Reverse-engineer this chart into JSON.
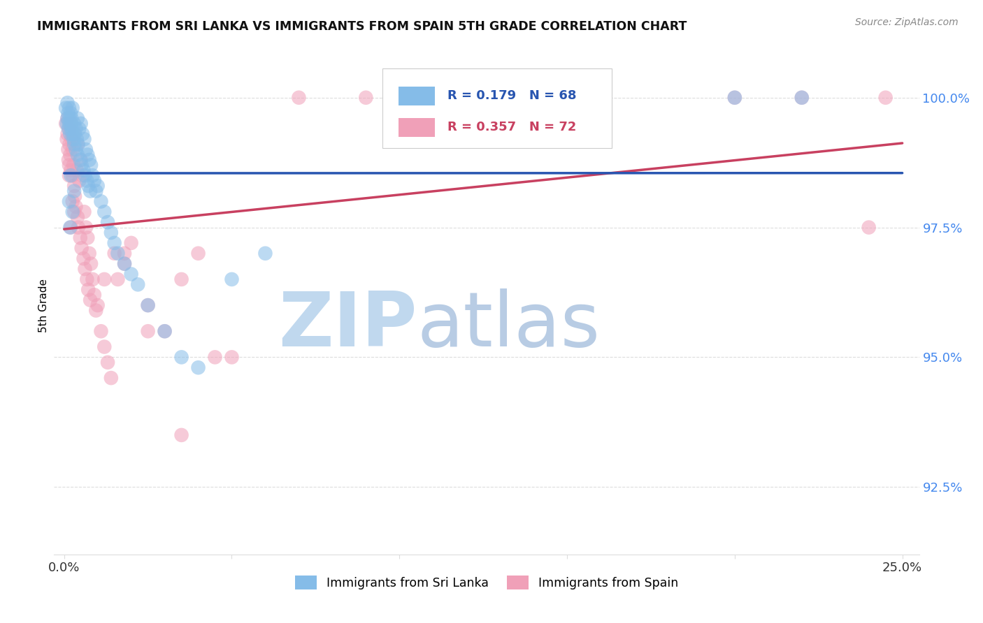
{
  "title": "IMMIGRANTS FROM SRI LANKA VS IMMIGRANTS FROM SPAIN 5TH GRADE CORRELATION CHART",
  "source": "Source: ZipAtlas.com",
  "ylabel": "5th Grade",
  "ylim": [
    91.2,
    100.8
  ],
  "xlim": [
    -0.3,
    25.5
  ],
  "ytick_vals": [
    92.5,
    95.0,
    97.5,
    100.0
  ],
  "xtick_vals": [
    0,
    5,
    10,
    15,
    20,
    25
  ],
  "xtick_labels": [
    "0.0%",
    "",
    "",
    "",
    "",
    "25.0%"
  ],
  "legend_sri_lanka": "Immigrants from Sri Lanka",
  "legend_spain": "Immigrants from Spain",
  "R_sri_lanka": 0.179,
  "N_sri_lanka": 68,
  "R_spain": 0.357,
  "N_spain": 72,
  "color_sri_lanka": "#85BCE8",
  "color_spain": "#F0A0B8",
  "line_sri_lanka": "#2855B0",
  "line_spain": "#C84060",
  "background": "#FFFFFF",
  "grid_color": "#DDDDDD",
  "title_color": "#111111",
  "source_color": "#888888",
  "ytick_color": "#4488EE",
  "watermark_color": "#D5E8F5",
  "sl_x": [
    0.05,
    0.08,
    0.1,
    0.1,
    0.12,
    0.13,
    0.15,
    0.15,
    0.16,
    0.18,
    0.2,
    0.2,
    0.22,
    0.22,
    0.25,
    0.25,
    0.28,
    0.3,
    0.3,
    0.32,
    0.35,
    0.35,
    0.38,
    0.4,
    0.4,
    0.42,
    0.45,
    0.48,
    0.5,
    0.52,
    0.55,
    0.58,
    0.6,
    0.62,
    0.65,
    0.68,
    0.7,
    0.72,
    0.75,
    0.78,
    0.8,
    0.85,
    0.9,
    0.95,
    1.0,
    1.1,
    1.2,
    1.3,
    1.4,
    1.5,
    1.6,
    1.8,
    2.0,
    2.2,
    2.5,
    3.0,
    3.5,
    4.0,
    5.0,
    6.0,
    0.15,
    0.18,
    0.2,
    0.25,
    0.3,
    11.0,
    20.0,
    22.0
  ],
  "sl_y": [
    99.8,
    99.5,
    99.9,
    99.6,
    99.7,
    99.4,
    99.8,
    99.5,
    99.6,
    99.3,
    99.7,
    99.5,
    99.4,
    99.6,
    99.3,
    99.8,
    99.2,
    99.5,
    99.1,
    99.3,
    99.0,
    99.4,
    99.2,
    99.6,
    98.9,
    99.1,
    99.4,
    98.8,
    99.5,
    98.7,
    99.3,
    98.6,
    99.2,
    98.5,
    99.0,
    98.4,
    98.9,
    98.3,
    98.8,
    98.2,
    98.7,
    98.5,
    98.4,
    98.2,
    98.3,
    98.0,
    97.8,
    97.6,
    97.4,
    97.2,
    97.0,
    96.8,
    96.6,
    96.4,
    96.0,
    95.5,
    95.0,
    94.8,
    96.5,
    97.0,
    98.0,
    97.5,
    98.5,
    97.8,
    98.2,
    100.0,
    100.0,
    100.0
  ],
  "sp_x": [
    0.05,
    0.08,
    0.1,
    0.1,
    0.12,
    0.13,
    0.15,
    0.15,
    0.16,
    0.18,
    0.2,
    0.2,
    0.22,
    0.25,
    0.25,
    0.28,
    0.3,
    0.3,
    0.32,
    0.35,
    0.38,
    0.4,
    0.4,
    0.42,
    0.45,
    0.48,
    0.5,
    0.52,
    0.55,
    0.58,
    0.6,
    0.62,
    0.65,
    0.68,
    0.7,
    0.72,
    0.75,
    0.78,
    0.8,
    0.85,
    0.9,
    0.95,
    1.0,
    1.1,
    1.2,
    1.3,
    1.4,
    1.5,
    1.6,
    1.8,
    2.0,
    2.5,
    3.0,
    3.5,
    4.0,
    5.0,
    0.15,
    0.2,
    0.25,
    0.3,
    1.2,
    1.8,
    2.5,
    3.5,
    4.5,
    7.0,
    9.0,
    12.0,
    20.0,
    22.0,
    24.0,
    24.5
  ],
  "sp_y": [
    99.5,
    99.2,
    99.6,
    99.3,
    99.0,
    98.8,
    99.4,
    98.7,
    99.1,
    98.9,
    99.5,
    98.6,
    99.2,
    99.0,
    98.5,
    98.7,
    99.3,
    98.3,
    98.1,
    97.9,
    98.6,
    97.7,
    99.1,
    97.5,
    98.4,
    97.3,
    98.8,
    97.1,
    98.5,
    96.9,
    97.8,
    96.7,
    97.5,
    96.5,
    97.3,
    96.3,
    97.0,
    96.1,
    96.8,
    96.5,
    96.2,
    95.9,
    96.0,
    95.5,
    95.2,
    94.9,
    94.6,
    97.0,
    96.5,
    96.8,
    97.2,
    96.0,
    95.5,
    96.5,
    97.0,
    95.0,
    98.5,
    97.5,
    98.0,
    97.8,
    96.5,
    97.0,
    95.5,
    93.5,
    95.0,
    100.0,
    100.0,
    100.0,
    100.0,
    100.0,
    97.5,
    100.0
  ]
}
